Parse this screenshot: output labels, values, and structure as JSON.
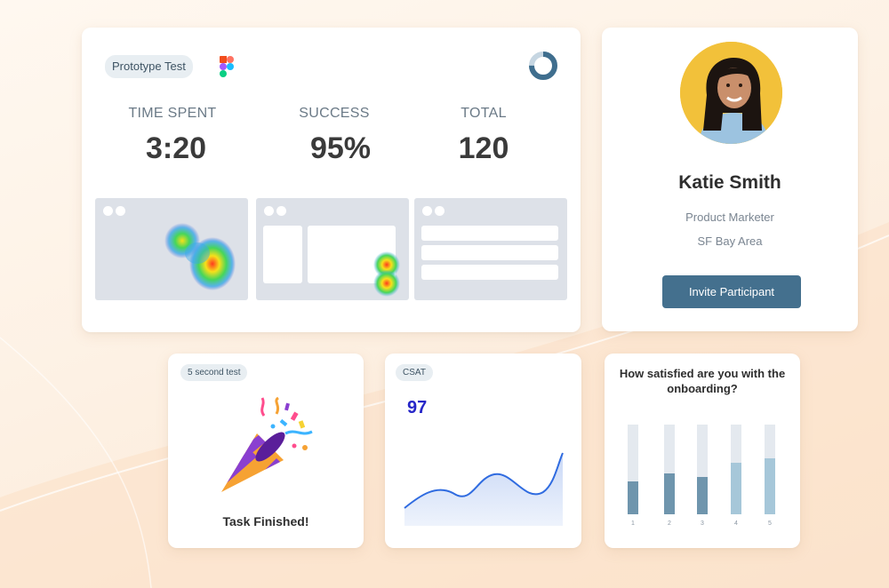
{
  "main_card": {
    "badge": "Prototype Test",
    "logo_icon": "figma-logo-icon",
    "progress_icon": "donut-progress-icon",
    "stats": [
      {
        "label": "TIME SPENT",
        "value": "3:20"
      },
      {
        "label": "SUCCESS",
        "value": "95%"
      },
      {
        "label": "TOTAL",
        "value": "120"
      }
    ]
  },
  "profile": {
    "name": "Katie Smith",
    "role": "Product Marketer",
    "location": "SF Bay Area",
    "invite_label": "Invite Participant"
  },
  "test_card": {
    "badge": "5 second test",
    "icon": "party-popper-icon",
    "label": "Task Finished!"
  },
  "csat_card": {
    "badge": "CSAT",
    "value": "97"
  },
  "survey_card": {
    "question": "How satisfied are you with the onboarding?",
    "bars": [
      {
        "label": "1",
        "value": 0.37
      },
      {
        "label": "2",
        "value": 0.46
      },
      {
        "label": "3",
        "value": 0.42
      },
      {
        "label": "4",
        "value": 0.57
      },
      {
        "label": "5",
        "value": 0.62
      }
    ]
  },
  "colors": {
    "accent": "#44708e",
    "csat_value": "#2626c8",
    "bar_dark": "#6f95ad",
    "bar_light": "#a6c7d9"
  }
}
